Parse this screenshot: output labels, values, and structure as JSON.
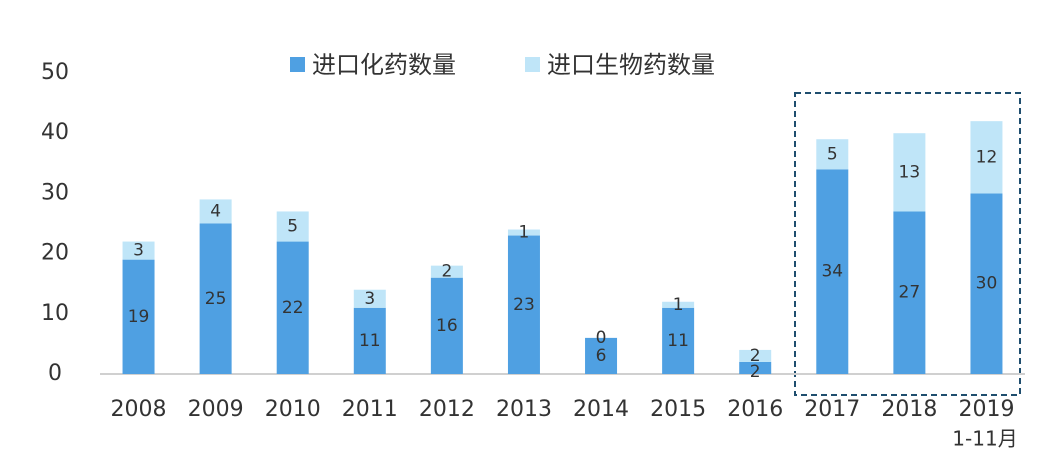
{
  "chart_data": {
    "type": "stacked_bar",
    "categories": [
      "2008",
      "2009",
      "2010",
      "2011",
      "2012",
      "2013",
      "2014",
      "2015",
      "2016",
      "2017",
      "2018",
      "2019"
    ],
    "series": [
      {
        "name": "进口化药数量",
        "color": "#4fa0e2",
        "values": [
          19,
          25,
          22,
          11,
          16,
          23,
          6,
          11,
          2,
          34,
          27,
          30
        ]
      },
      {
        "name": "进口生物药数量",
        "color": "#bfe5f8",
        "values": [
          3,
          4,
          5,
          3,
          2,
          1,
          0,
          1,
          2,
          5,
          13,
          12
        ]
      }
    ],
    "annotation": "1-11月",
    "ylim": [
      0,
      50
    ],
    "yticks": [
      0,
      10,
      20,
      30,
      40,
      50
    ],
    "grid": false,
    "legend": "top"
  }
}
